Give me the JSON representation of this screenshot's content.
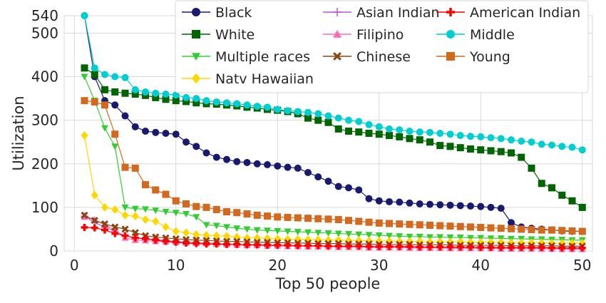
{
  "chart_data": {
    "type": "line",
    "xlabel": "Top 50 people",
    "ylabel": "Utilization",
    "xlim": [
      -1,
      51
    ],
    "ylim": [
      0,
      540
    ],
    "xticks": [
      0,
      10,
      20,
      30,
      40,
      50
    ],
    "yticks": [
      0,
      100,
      200,
      300,
      400,
      500,
      540
    ],
    "grid": true,
    "legend_position": "top-right",
    "x": [
      1,
      2,
      3,
      4,
      5,
      6,
      7,
      8,
      9,
      10,
      11,
      12,
      13,
      14,
      15,
      16,
      17,
      18,
      19,
      20,
      21,
      22,
      23,
      24,
      25,
      26,
      27,
      28,
      29,
      30,
      31,
      32,
      33,
      34,
      35,
      36,
      37,
      38,
      39,
      40,
      41,
      42,
      43,
      44,
      45,
      46,
      47,
      48,
      49,
      50
    ],
    "series": [
      {
        "name": "Black",
        "color": "#191970",
        "marker": "circle",
        "values": [
          540,
          400,
          345,
          335,
          310,
          285,
          275,
          272,
          270,
          268,
          250,
          240,
          225,
          215,
          210,
          205,
          203,
          200,
          198,
          195,
          192,
          190,
          180,
          170,
          160,
          148,
          145,
          140,
          120,
          115,
          113,
          112,
          110,
          108,
          107,
          106,
          105,
          104,
          103,
          102,
          100,
          98,
          65,
          55,
          52,
          50,
          48,
          46,
          45,
          45
        ]
      },
      {
        "name": "White",
        "color": "#006400",
        "marker": "square",
        "values": [
          420,
          405,
          370,
          365,
          362,
          360,
          357,
          352,
          348,
          345,
          343,
          340,
          338,
          337,
          335,
          333,
          330,
          328,
          325,
          323,
          320,
          315,
          305,
          300,
          295,
          280,
          275,
          273,
          270,
          268,
          265,
          262,
          258,
          255,
          250,
          242,
          240,
          237,
          234,
          232,
          230,
          228,
          225,
          215,
          190,
          155,
          145,
          128,
          115,
          100
        ]
      },
      {
        "name": "Multiple races",
        "color": "#32CD32",
        "marker": "triangle-down",
        "values": [
          400,
          345,
          282,
          240,
          100,
          97,
          96,
          93,
          90,
          88,
          85,
          78,
          60,
          58,
          55,
          52,
          50,
          48,
          47,
          46,
          45,
          44,
          43,
          42,
          41,
          40,
          39,
          38,
          37,
          36,
          35,
          34,
          33,
          33,
          32,
          32,
          31,
          31,
          30,
          30,
          29,
          29,
          28,
          28,
          27,
          27,
          26,
          26,
          25,
          25
        ]
      },
      {
        "name": "Natv Hawaiian",
        "color": "#FFD700",
        "marker": "diamond",
        "values": [
          265,
          128,
          100,
          95,
          82,
          80,
          72,
          68,
          55,
          45,
          42,
          38,
          36,
          35,
          34,
          32,
          30,
          30,
          29,
          28,
          27,
          27,
          26,
          26,
          25,
          25,
          24,
          24,
          23,
          23,
          23,
          22,
          22,
          22,
          21,
          21,
          21,
          21,
          20,
          20,
          20,
          20,
          19,
          19,
          19,
          19,
          18,
          18,
          18,
          18
        ]
      },
      {
        "name": "Asian Indian",
        "color": "#BA55D3",
        "marker": "plus",
        "values": [
          80,
          65,
          55,
          45,
          35,
          30,
          28,
          26,
          24,
          22,
          20,
          19,
          18,
          17,
          16,
          15,
          15,
          14,
          14,
          13,
          13,
          12,
          12,
          12,
          11,
          11,
          11,
          10,
          10,
          10,
          10,
          9,
          9,
          9,
          9,
          8,
          8,
          8,
          8,
          8,
          7,
          7,
          7,
          7,
          7,
          6,
          6,
          6,
          6,
          6
        ]
      },
      {
        "name": "Filipino",
        "color": "#FF69B4",
        "marker": "triangle-up",
        "values": [
          78,
          72,
          60,
          48,
          30,
          25,
          24,
          22,
          21,
          20,
          19,
          18,
          17,
          16,
          15,
          14,
          13,
          13,
          12,
          12,
          11,
          11,
          10,
          10,
          10,
          9,
          9,
          9,
          8,
          8,
          8,
          8,
          7,
          7,
          7,
          7,
          6,
          6,
          6,
          6,
          6,
          5,
          5,
          5,
          5,
          5,
          5,
          4,
          4,
          4
        ]
      },
      {
        "name": "Chinese",
        "color": "#8B4513",
        "marker": "x",
        "values": [
          82,
          70,
          62,
          55,
          50,
          42,
          35,
          32,
          30,
          28,
          26,
          25,
          24,
          23,
          22,
          22,
          21,
          20,
          20,
          19,
          19,
          18,
          18,
          17,
          17,
          17,
          16,
          16,
          16,
          15,
          15,
          15,
          15,
          14,
          14,
          14,
          14,
          13,
          13,
          13,
          13,
          13,
          12,
          12,
          12,
          12,
          12,
          11,
          11,
          11
        ]
      },
      {
        "name": "American Indian",
        "color": "#FF0000",
        "marker": "cross",
        "values": [
          54,
          53,
          48,
          40,
          35,
          30,
          28,
          25,
          22,
          20,
          18,
          17,
          16,
          16,
          15,
          15,
          14,
          14,
          13,
          13,
          13,
          12,
          12,
          12,
          11,
          11,
          11,
          11,
          10,
          10,
          10,
          10,
          10,
          9,
          9,
          9,
          9,
          9,
          9,
          8,
          8,
          8,
          8,
          8,
          8,
          8,
          7,
          7,
          7,
          7
        ]
      },
      {
        "name": "Middle",
        "color": "#00CED1",
        "marker": "circle",
        "values": [
          540,
          420,
          405,
          400,
          398,
          370,
          365,
          362,
          360,
          358,
          352,
          350,
          345,
          342,
          340,
          338,
          335,
          332,
          330,
          325,
          322,
          320,
          318,
          315,
          310,
          305,
          300,
          297,
          290,
          285,
          280,
          278,
          275,
          273,
          272,
          270,
          268,
          265,
          263,
          262,
          260,
          258,
          255,
          252,
          250,
          245,
          243,
          240,
          238,
          232
        ]
      },
      {
        "name": "Young",
        "color": "#D2691E",
        "marker": "square",
        "values": [
          345,
          342,
          335,
          268,
          192,
          190,
          152,
          140,
          130,
          115,
          108,
          102,
          100,
          95,
          90,
          88,
          85,
          82,
          80,
          78,
          77,
          76,
          75,
          74,
          73,
          72,
          70,
          68,
          66,
          64,
          63,
          62,
          61,
          60,
          59,
          58,
          57,
          56,
          55,
          54,
          53,
          52,
          51,
          50,
          49,
          48,
          48,
          47,
          46,
          45
        ]
      }
    ],
    "legend_order": [
      "Black",
      "Asian Indian",
      "American Indian",
      "White",
      "Filipino",
      "Middle",
      "Multiple races",
      "Chinese",
      "Young",
      "Natv Hawaiian"
    ]
  }
}
